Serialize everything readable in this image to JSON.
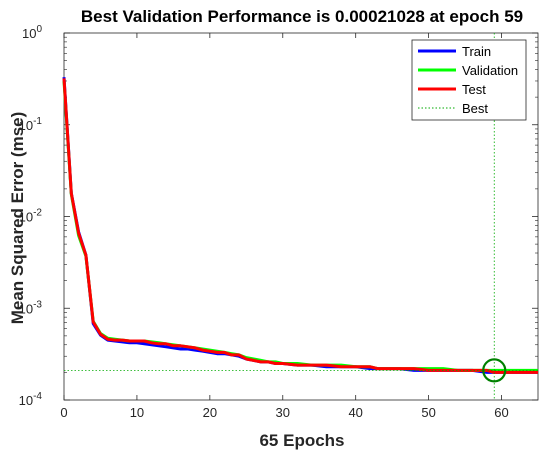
{
  "chart_data": {
    "type": "line",
    "title": "Best Validation Performance is 0.00021028 at epoch 59",
    "xlabel": "65 Epochs",
    "ylabel": "Mean Squared Error  (mse)",
    "xlim": [
      0,
      65
    ],
    "ylim": [
      0.0001,
      1
    ],
    "yscale": "log",
    "xticks": [
      0,
      10,
      20,
      30,
      40,
      50,
      60
    ],
    "yticks": [
      {
        "value": 1,
        "base": "10",
        "exp": "0"
      },
      {
        "value": 0.1,
        "base": "10",
        "exp": "-1"
      },
      {
        "value": 0.01,
        "base": "10",
        "exp": "-2"
      },
      {
        "value": 0.001,
        "base": "10",
        "exp": "-3"
      },
      {
        "value": 0.0001,
        "base": "10",
        "exp": "-4"
      }
    ],
    "grid": false,
    "legend_position": "top-right",
    "series": [
      {
        "name": "Train",
        "color": "#0000ff",
        "x": [
          0,
          1,
          2,
          3,
          4,
          5,
          6,
          7,
          8,
          9,
          10,
          11,
          12,
          13,
          14,
          15,
          16,
          17,
          18,
          19,
          20,
          21,
          22,
          23,
          24,
          25,
          26,
          27,
          28,
          29,
          30,
          32,
          34,
          36,
          38,
          40,
          42,
          43,
          44,
          46,
          48,
          50,
          52,
          54,
          56,
          58,
          59,
          60,
          62,
          64,
          65
        ],
        "y": [
          0.33,
          0.018,
          0.0068,
          0.0038,
          0.00068,
          0.00051,
          0.00045,
          0.00044,
          0.00043,
          0.00042,
          0.00042,
          0.00041,
          0.0004,
          0.00039,
          0.00038,
          0.00037,
          0.00036,
          0.00036,
          0.00035,
          0.00034,
          0.00033,
          0.00032,
          0.00032,
          0.00031,
          0.0003,
          0.00028,
          0.00027,
          0.00026,
          0.00026,
          0.00025,
          0.00025,
          0.00024,
          0.00024,
          0.00023,
          0.00023,
          0.00023,
          0.00022,
          0.00022,
          0.00022,
          0.00022,
          0.00021,
          0.00021,
          0.00021,
          0.00021,
          0.00021,
          0.0002,
          0.0002,
          0.0002,
          0.0002,
          0.0002,
          0.0002
        ]
      },
      {
        "name": "Validation",
        "color": "#00ff00",
        "x": [
          0,
          1,
          2,
          3,
          4,
          5,
          6,
          7,
          8,
          9,
          10,
          11,
          12,
          13,
          14,
          15,
          16,
          17,
          18,
          19,
          20,
          21,
          22,
          23,
          24,
          25,
          26,
          27,
          28,
          29,
          30,
          32,
          34,
          36,
          38,
          40,
          42,
          43,
          44,
          46,
          48,
          50,
          52,
          54,
          56,
          58,
          59,
          60,
          62,
          64,
          65
        ],
        "y": [
          0.3,
          0.0175,
          0.0062,
          0.0037,
          0.00072,
          0.00053,
          0.00047,
          0.00046,
          0.00045,
          0.00044,
          0.00044,
          0.00044,
          0.00043,
          0.00042,
          0.00041,
          0.0004,
          0.00039,
          0.00038,
          0.00037,
          0.00036,
          0.00035,
          0.00034,
          0.00033,
          0.00032,
          0.00031,
          0.00029,
          0.00028,
          0.00027,
          0.00026,
          0.00026,
          0.00025,
          0.00025,
          0.00024,
          0.00024,
          0.00024,
          0.00023,
          0.00023,
          0.00022,
          0.00022,
          0.00022,
          0.00022,
          0.00022,
          0.00022,
          0.00021,
          0.00021,
          0.00021,
          0.00021028,
          0.00021,
          0.00021,
          0.00021,
          0.00021
        ]
      },
      {
        "name": "Test",
        "color": "#ff0000",
        "x": [
          0,
          1,
          2,
          3,
          4,
          5,
          6,
          7,
          8,
          9,
          10,
          11,
          12,
          13,
          14,
          15,
          16,
          17,
          18,
          19,
          20,
          21,
          22,
          23,
          24,
          25,
          26,
          27,
          28,
          29,
          30,
          32,
          34,
          36,
          38,
          40,
          42,
          43,
          44,
          46,
          48,
          50,
          52,
          54,
          56,
          58,
          59,
          60,
          62,
          64,
          65
        ],
        "y": [
          0.32,
          0.018,
          0.0066,
          0.0038,
          0.00071,
          0.00052,
          0.00046,
          0.00045,
          0.00045,
          0.00044,
          0.00044,
          0.00044,
          0.00042,
          0.00041,
          0.00041,
          0.00039,
          0.00039,
          0.00038,
          0.00037,
          0.00035,
          0.00034,
          0.00033,
          0.00033,
          0.00031,
          0.00031,
          0.00028,
          0.00027,
          0.00026,
          0.00026,
          0.00025,
          0.00025,
          0.00024,
          0.00024,
          0.00024,
          0.00023,
          0.00023,
          0.00023,
          0.00022,
          0.00022,
          0.00022,
          0.00022,
          0.00021,
          0.00021,
          0.00021,
          0.00021,
          0.00021,
          0.0002,
          0.0002,
          0.0002,
          0.0002,
          0.0002
        ]
      }
    ],
    "best": {
      "name": "Best",
      "color": "#00aa00",
      "epoch": 59,
      "value": 0.00021028
    }
  }
}
